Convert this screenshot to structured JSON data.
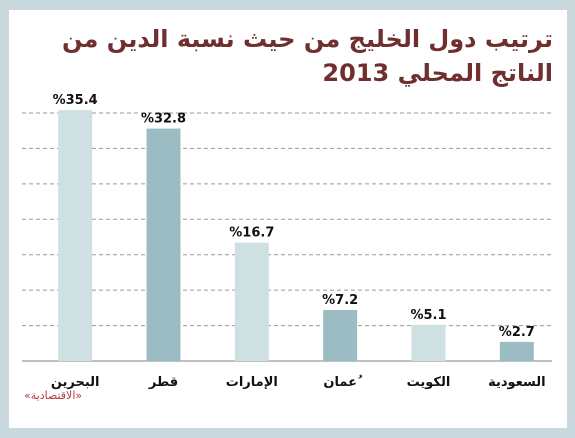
{
  "title": "ترتيب دول الخليج من حيث نسبة الدين من الناتج المحلي 2013",
  "source": "«الاقتصادية»",
  "colors": {
    "background": "#c9d8dc",
    "title": "#6f2f2f",
    "source": "#b23b3b",
    "bar_light": "#cfe0e3",
    "bar_dark": "#9cbcc3",
    "grid": "#9a9a9a"
  },
  "chart_data": {
    "type": "bar",
    "title": "ترتيب دول الخليج من حيث نسبة الدين من الناتج المحلي 2013",
    "categories": [
      "البحرين",
      "قطر",
      "الإمارات",
      "ُعمان",
      "الكويت",
      "السعودية"
    ],
    "values": [
      35.4,
      32.8,
      16.7,
      7.2,
      5.1,
      2.7
    ],
    "value_labels": [
      "%35.4",
      "%32.8",
      "%16.7",
      "%7.2",
      "%5.1",
      "%2.7"
    ],
    "bar_colors": [
      "#cfe0e3",
      "#9cbcc3",
      "#cfe0e3",
      "#9cbcc3",
      "#cfe0e3",
      "#9cbcc3"
    ],
    "ylim": [
      0,
      35
    ],
    "grid": "dashed horizontal",
    "xlabel": "",
    "ylabel": ""
  }
}
